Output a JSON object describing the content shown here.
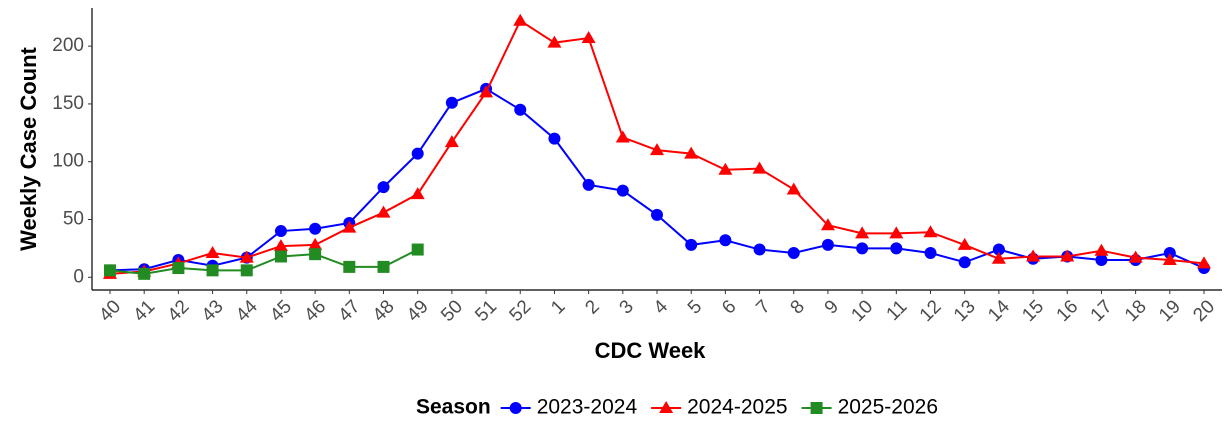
{
  "chart_data": {
    "type": "line",
    "x_label": "CDC Week",
    "y_label": "Weekly Case Count",
    "legend_title": "Season",
    "legend_position": "bottom",
    "categories": [
      "40",
      "41",
      "42",
      "43",
      "44",
      "45",
      "46",
      "47",
      "48",
      "49",
      "50",
      "51",
      "52",
      "1",
      "2",
      "3",
      "4",
      "5",
      "6",
      "7",
      "8",
      "9",
      "10",
      "11",
      "12",
      "13",
      "14",
      "15",
      "16",
      "17",
      "18",
      "19",
      "20"
    ],
    "series": [
      {
        "name": "2023-2024",
        "color": "#0000ff",
        "marker": "circle",
        "values": [
          6,
          7,
          15,
          10,
          17,
          40,
          42,
          47,
          78,
          107,
          151,
          163,
          145,
          120,
          80,
          75,
          54,
          28,
          32,
          24,
          21,
          28,
          25,
          25,
          21,
          13,
          24,
          16,
          18,
          15,
          15,
          21,
          8
        ]
      },
      {
        "name": "2024-2025",
        "color": "#ff0000",
        "marker": "triangle",
        "values": [
          3,
          5,
          12,
          21,
          17,
          27,
          28,
          43,
          56,
          72,
          117,
          160,
          222,
          203,
          207,
          121,
          110,
          107,
          93,
          94,
          76,
          45,
          38,
          38,
          39,
          28,
          16,
          18,
          18,
          23,
          17,
          15,
          12
        ]
      },
      {
        "name": "2025-2026",
        "color": "#228b22",
        "marker": "square",
        "values": [
          6,
          3,
          8,
          6,
          6,
          18,
          20,
          9,
          9,
          24,
          null,
          null,
          null,
          null,
          null,
          null,
          null,
          null,
          null,
          null,
          null,
          null,
          null,
          null,
          null,
          null,
          null,
          null,
          null,
          null,
          null,
          null,
          null
        ]
      }
    ],
    "ylim": [
      -11,
      233
    ],
    "yticks": [
      0,
      50,
      100,
      150,
      200
    ],
    "grid": false
  }
}
